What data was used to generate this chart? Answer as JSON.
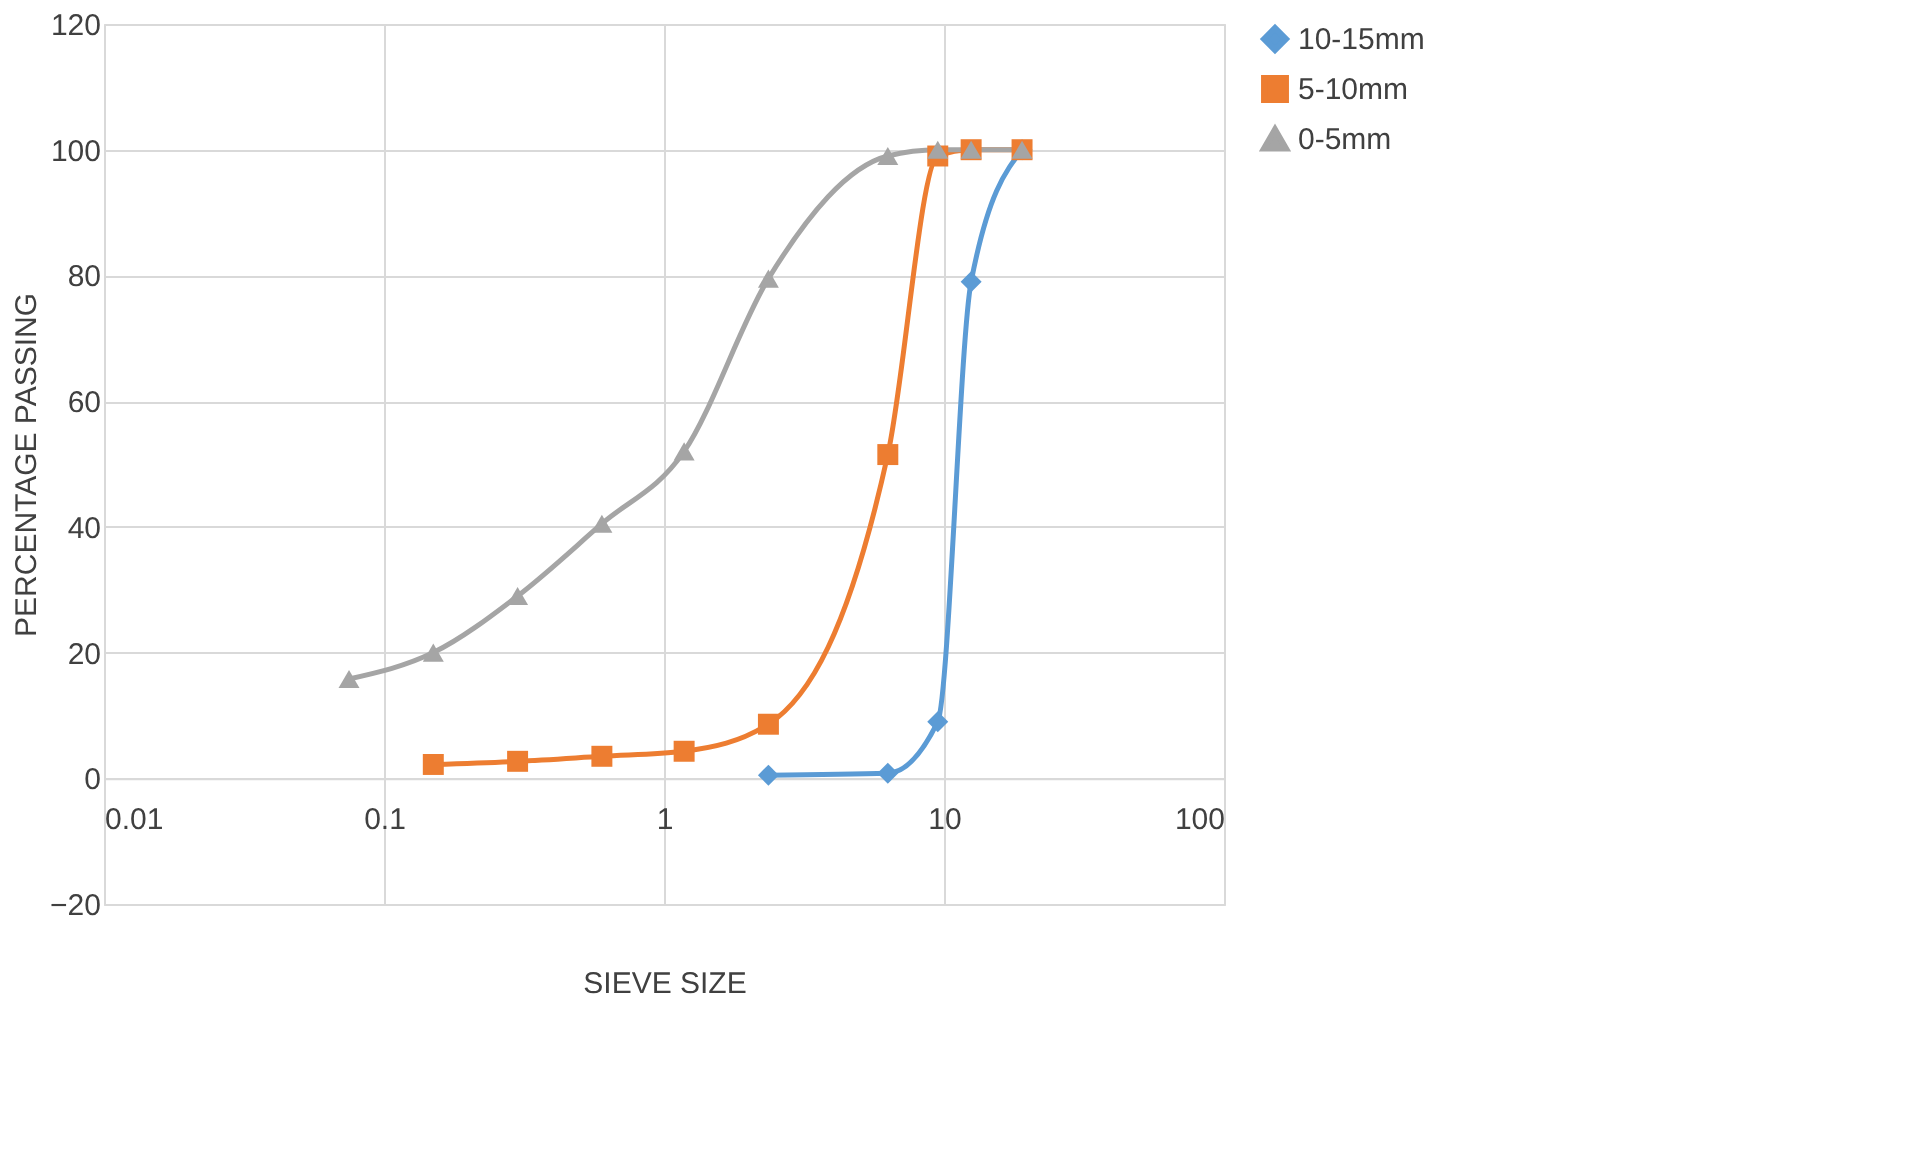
{
  "chart_data": {
    "type": "line",
    "xlabel": "SIEVE SIZE",
    "ylabel": "PERCENTAGE PASSING",
    "log": "x",
    "xlim": [
      0.01,
      100
    ],
    "xticks": [
      0.01,
      0.1,
      1,
      10,
      100
    ],
    "ylim": [
      -20,
      120
    ],
    "yticks": [
      -20,
      0,
      20,
      40,
      60,
      80,
      100,
      120
    ],
    "grid": true,
    "legend": "right",
    "line_style": "solid",
    "series": [
      {
        "name": "10-15mm",
        "color": "#5b9bd5",
        "marker": "diamond",
        "x": [
          2.36,
          6.3,
          9.5,
          12.5,
          19
        ],
        "values": [
          0.5,
          0.8,
          9,
          79,
          100
        ]
      },
      {
        "name": "5-10mm",
        "color": "#ed7d31",
        "marker": "square",
        "x": [
          0.15,
          0.3,
          0.6,
          1.18,
          2.36,
          6.3,
          9.5,
          12.5,
          19
        ],
        "values": [
          2.2,
          2.7,
          3.5,
          4.3,
          8.6,
          51.5,
          99,
          100,
          100
        ]
      },
      {
        "name": "0-5mm",
        "color": "#a5a5a5",
        "marker": "triangle",
        "x": [
          0.075,
          0.15,
          0.3,
          0.6,
          1.18,
          2.36,
          6.3,
          9.5,
          12.5,
          19
        ],
        "values": [
          15.8,
          20,
          29,
          40.5,
          52,
          79.5,
          99,
          100,
          100,
          100
        ]
      }
    ]
  }
}
